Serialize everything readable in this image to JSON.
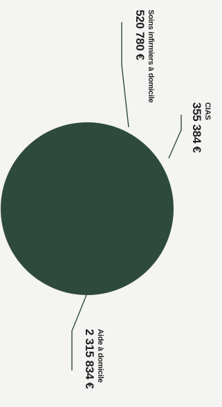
{
  "chart_data": {
    "type": "pie",
    "slices": [
      {
        "label": "Aide à domicile",
        "value": "2 315 834 €",
        "amount": 2315834
      },
      {
        "label": "CIAS",
        "value": "355 384 €",
        "amount": 355384
      },
      {
        "label": "Soins infirmiers à domicile",
        "value": "520 780 €",
        "amount": 520780
      }
    ],
    "colors": {
      "slice": "#2e4a3d",
      "leader": "#2e4a3d",
      "text": "#1c1c1c"
    }
  }
}
